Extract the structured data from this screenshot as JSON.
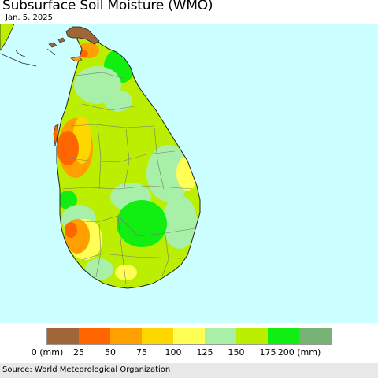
{
  "header": {
    "title": "Subsurface Soil Moisture (WMO)",
    "date": "Jan. 5, 2025"
  },
  "map": {
    "ocean_color": "#ccffff",
    "land_base_color": "#bbee00",
    "region_border_color": "#777777",
    "coast_color": "#222222"
  },
  "legend": {
    "swatches": [
      {
        "color": "#a0663a",
        "range": "0-25"
      },
      {
        "color": "#ff6600",
        "range": "25-50"
      },
      {
        "color": "#ffa000",
        "range": "50-75"
      },
      {
        "color": "#ffd700",
        "range": "75-100"
      },
      {
        "color": "#ffff55",
        "range": "100-125"
      },
      {
        "color": "#a8f0a8",
        "range": "125-150"
      },
      {
        "color": "#bbee00",
        "range": "150-175"
      },
      {
        "color": "#11ee11",
        "range": "175-200"
      },
      {
        "color": "#77b377",
        "range": "200+"
      }
    ],
    "labels": [
      "0 (mm)",
      "25",
      "50",
      "75",
      "100",
      "125",
      "150",
      "175",
      "200 (mm)"
    ]
  },
  "footer": {
    "source": "Source: World Meteorological Organization"
  }
}
